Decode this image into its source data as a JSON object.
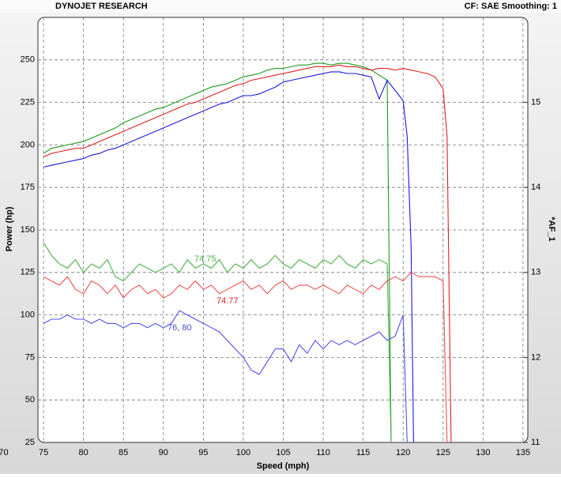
{
  "chart_data": {
    "type": "line",
    "header_left": "DYNOJET RESEARCH",
    "header_right": "CF: SAE  Smoothing: 1",
    "xlabel": "Speed (mph)",
    "ylabel": "Power (hp)",
    "y2label": "*AF_1",
    "xlim": [
      74.3,
      135.6
    ],
    "xticks": [
      70,
      75,
      80,
      85,
      90,
      95,
      100,
      105,
      110,
      115,
      120,
      125,
      130,
      135
    ],
    "ylim": [
      25,
      275
    ],
    "yticks": [
      25,
      50,
      75,
      100,
      125,
      150,
      175,
      200,
      225,
      250
    ],
    "y2lim": [
      11,
      16
    ],
    "y2ticks": [
      11,
      12,
      13,
      14,
      15
    ],
    "grid": true,
    "series": [
      {
        "color": "#1e9a1e",
        "x": [
          75,
          76,
          77,
          78,
          79,
          80,
          81,
          82,
          83,
          84,
          85,
          86,
          87,
          88,
          89,
          90,
          91,
          92,
          93,
          94,
          95,
          96,
          97,
          98,
          99,
          100,
          101,
          102,
          103,
          104,
          105,
          106,
          107,
          108,
          109,
          110,
          111,
          112,
          113,
          114,
          115,
          116,
          117,
          118,
          118.5
        ],
        "values": [
          195,
          198,
          199,
          200,
          201,
          202,
          204,
          206,
          208,
          210,
          213,
          215,
          217,
          219,
          221,
          222,
          224,
          226,
          228,
          230,
          232,
          234,
          235,
          236,
          238,
          240,
          241,
          242,
          244,
          245,
          245,
          246,
          247,
          247,
          248,
          248,
          247,
          248,
          248,
          247,
          246,
          244,
          241,
          238,
          25
        ]
      },
      {
        "color": "#e02020",
        "x": [
          75,
          76,
          77,
          78,
          79,
          80,
          81,
          82,
          83,
          84,
          85,
          86,
          87,
          88,
          89,
          90,
          91,
          92,
          93,
          94,
          95,
          96,
          97,
          98,
          99,
          100,
          101,
          102,
          103,
          104,
          105,
          106,
          107,
          108,
          109,
          110,
          111,
          112,
          113,
          114,
          115,
          116,
          117,
          118,
          119,
          120,
          121,
          122,
          123,
          124,
          125,
          125.5,
          126
        ],
        "values": [
          193,
          195,
          196,
          197,
          198,
          198,
          200,
          202,
          204,
          206,
          208,
          210,
          212,
          214,
          216,
          218,
          220,
          222,
          224,
          225,
          227,
          229,
          231,
          233,
          235,
          236,
          238,
          239,
          240,
          241,
          242,
          243,
          244,
          245,
          246,
          246,
          246,
          247,
          246,
          246,
          245,
          244,
          245,
          245,
          244,
          245,
          244,
          243,
          242,
          240,
          233,
          205,
          25
        ]
      },
      {
        "color": "#1a1ae0",
        "x": [
          75,
          76,
          77,
          78,
          79,
          80,
          81,
          82,
          83,
          84,
          85,
          86,
          87,
          88,
          89,
          90,
          91,
          92,
          93,
          94,
          95,
          96,
          97,
          98,
          99,
          100,
          101,
          102,
          103,
          104,
          105,
          106,
          107,
          108,
          109,
          110,
          111,
          112,
          113,
          114,
          115,
          116,
          117,
          118,
          119,
          120,
          120.5,
          121,
          121.3
        ],
        "values": [
          187,
          188,
          189,
          190,
          191,
          192,
          194,
          195,
          197,
          198,
          200,
          202,
          204,
          206,
          208,
          210,
          212,
          214,
          216,
          218,
          220,
          222,
          224,
          225,
          227,
          229,
          229,
          230,
          232,
          234,
          237,
          238,
          239,
          240,
          241,
          242,
          243,
          243,
          242,
          242,
          241,
          240,
          227,
          238,
          232,
          226,
          205,
          140,
          25
        ]
      },
      {
        "name": "74.75",
        "color": "#4caf4c",
        "axis": "y2",
        "x": [
          75,
          76,
          77,
          78,
          79,
          80,
          81,
          82,
          83,
          84,
          85,
          86,
          87,
          88,
          89,
          90,
          91,
          92,
          93,
          94,
          95,
          96,
          97,
          98,
          99,
          100,
          101,
          102,
          103,
          104,
          105,
          106,
          107,
          108,
          109,
          110,
          111,
          112,
          113,
          114,
          115,
          116,
          117,
          118,
          118.5
        ],
        "values": [
          13.35,
          13.2,
          13.1,
          13.05,
          13.15,
          13.0,
          13.1,
          13.05,
          13.15,
          12.95,
          12.9,
          13.0,
          13.1,
          13.05,
          13.0,
          13.05,
          13.1,
          13.0,
          13.15,
          13.05,
          13.1,
          13.05,
          13.15,
          13.0,
          13.1,
          13.05,
          13.15,
          13.05,
          13.1,
          13.2,
          13.1,
          13.05,
          13.15,
          13.1,
          13.05,
          13.15,
          13.1,
          13.2,
          13.1,
          13.05,
          13.15,
          13.1,
          13.15,
          13.1,
          11.0
        ]
      },
      {
        "name": "74.77",
        "color": "#f05050",
        "axis": "y2",
        "x": [
          75,
          76,
          77,
          78,
          79,
          80,
          81,
          82,
          83,
          84,
          85,
          86,
          87,
          88,
          89,
          90,
          91,
          92,
          93,
          94,
          95,
          96,
          97,
          98,
          99,
          100,
          101,
          102,
          103,
          104,
          105,
          106,
          107,
          108,
          109,
          110,
          111,
          112,
          113,
          114,
          115,
          116,
          117,
          118,
          119,
          120,
          121,
          122,
          123,
          124,
          125,
          125.5
        ],
        "values": [
          12.95,
          12.9,
          12.85,
          12.95,
          12.8,
          12.75,
          12.9,
          12.85,
          12.75,
          12.85,
          12.7,
          12.8,
          12.85,
          12.75,
          12.8,
          12.7,
          12.75,
          12.85,
          12.8,
          12.9,
          12.8,
          12.85,
          12.75,
          12.8,
          12.85,
          12.9,
          12.8,
          12.85,
          12.75,
          12.85,
          12.9,
          12.8,
          12.85,
          12.85,
          12.8,
          12.85,
          12.8,
          12.75,
          12.85,
          12.8,
          12.75,
          12.85,
          12.8,
          12.9,
          12.95,
          12.9,
          13.0,
          12.95,
          12.95,
          12.95,
          12.9,
          11.0
        ]
      },
      {
        "name": "76, 80",
        "color": "#5050f0",
        "axis": "y2",
        "x": [
          75,
          76,
          77,
          78,
          79,
          80,
          81,
          82,
          83,
          84,
          85,
          86,
          87,
          88,
          89,
          90,
          91,
          92,
          93,
          94,
          95,
          96,
          97,
          98,
          99,
          100,
          101,
          102,
          103,
          104,
          105,
          106,
          107,
          108,
          109,
          110,
          111,
          112,
          113,
          114,
          115,
          116,
          117,
          118,
          119,
          120,
          120.5
        ],
        "values": [
          12.4,
          12.45,
          12.45,
          12.5,
          12.45,
          12.45,
          12.4,
          12.45,
          12.4,
          12.4,
          12.35,
          12.4,
          12.4,
          12.35,
          12.4,
          12.35,
          12.4,
          12.55,
          12.5,
          12.45,
          12.4,
          12.35,
          12.3,
          12.2,
          12.1,
          12.0,
          11.85,
          11.8,
          11.95,
          12.1,
          12.1,
          11.95,
          12.15,
          12.05,
          12.2,
          12.1,
          12.2,
          12.15,
          12.2,
          12.15,
          12.2,
          12.25,
          12.3,
          12.2,
          12.25,
          12.5,
          11.0
        ]
      }
    ]
  }
}
